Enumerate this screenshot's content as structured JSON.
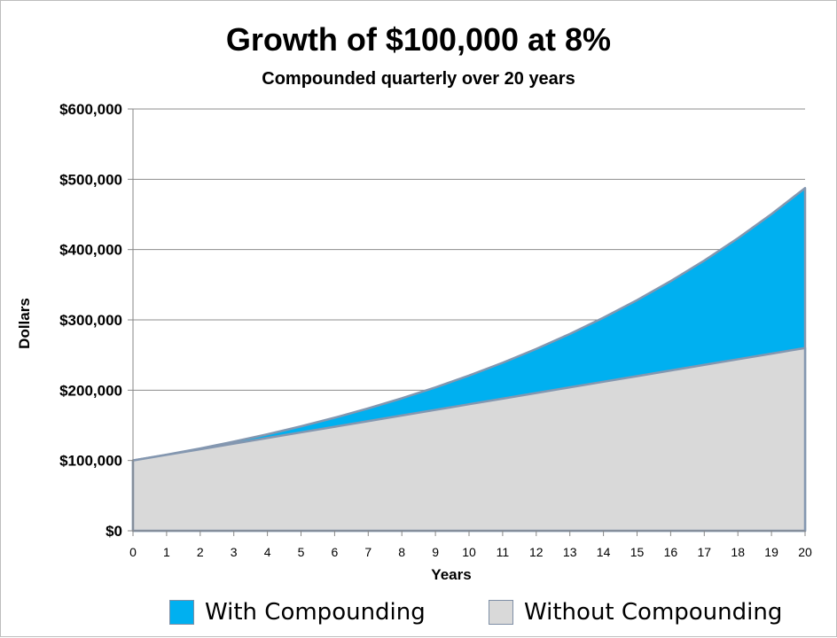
{
  "chart_data": {
    "type": "area",
    "title": "Growth of $100,000 at 8%",
    "subtitle": "Compounded quarterly over 20 years",
    "xlabel": "Years",
    "ylabel": "Dollars",
    "ylim": [
      0,
      600000
    ],
    "xlim": [
      0,
      20
    ],
    "x": [
      0,
      1,
      2,
      3,
      4,
      5,
      6,
      7,
      8,
      9,
      10,
      11,
      12,
      13,
      14,
      15,
      16,
      17,
      18,
      19,
      20
    ],
    "y_ticks": [
      0,
      100000,
      200000,
      300000,
      400000,
      500000,
      600000
    ],
    "y_tick_labels": [
      "$0",
      "$100,000",
      "$200,000",
      "$300,000",
      "$400,000",
      "$500,000",
      "$600,000"
    ],
    "x_tick_labels": [
      "0",
      "1",
      "2",
      "3",
      "4",
      "5",
      "6",
      "7",
      "8",
      "9",
      "10",
      "11",
      "12",
      "13",
      "14",
      "15",
      "16",
      "17",
      "18",
      "19",
      "20"
    ],
    "grid": "horizontal",
    "legend_position": "bottom",
    "series": [
      {
        "name": "With Compounding",
        "color": "#00b0f0",
        "values": [
          100000,
          108243,
          117166,
          126824,
          137279,
          148595,
          160844,
          174102,
          188454,
          203989,
          220804,
          239005,
          258707,
          280033,
          303117,
          328103,
          355149,
          384425,
          416114,
          450415,
          487544
        ]
      },
      {
        "name": "Without Compounding",
        "color": "#d9d9d9",
        "values": [
          100000,
          108000,
          116000,
          124000,
          132000,
          140000,
          148000,
          156000,
          164000,
          172000,
          180000,
          188000,
          196000,
          204000,
          212000,
          220000,
          228000,
          236000,
          244000,
          252000,
          260000
        ]
      }
    ]
  },
  "colors": {
    "with_fill": "#00b0f0",
    "without_fill": "#d9d9d9",
    "series_outline": "#8497b0",
    "gridline": "#8c8c8c",
    "axis": "#868686"
  }
}
